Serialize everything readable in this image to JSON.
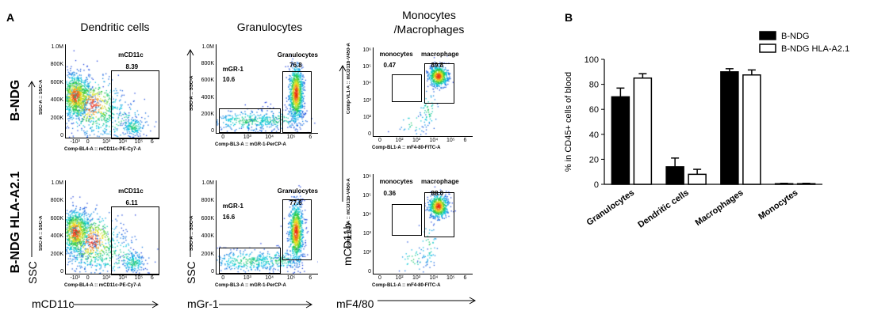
{
  "panel_a": {
    "label": "A",
    "columns": [
      "Dendritic cells",
      "Granulocytes",
      "Monocytes\n/Macrophages"
    ],
    "rows": [
      "B-NDG",
      "B-NDG HLA-A2.1"
    ],
    "y_axis_word": "SSC",
    "y_axis_word_mono": "mCD11b",
    "x_axis_words": [
      "mCD11c",
      "mGr-1",
      "mF4/80"
    ],
    "flow_plots": [
      {
        "x_param": "Comp-BL4-A :: mCD11c-PE-Cy7-A",
        "y_param": "SSC-A :: SSC-A",
        "x_ticks": [
          "-10³",
          "0",
          "10³",
          "10⁴",
          "10⁵",
          "6"
        ],
        "y_ticks": [
          "1.0M",
          "800K",
          "600K",
          "400K",
          "200K",
          "0"
        ],
        "gates": [
          {
            "name": "mCD11c",
            "value": "8.39"
          }
        ]
      },
      {
        "x_param": "Comp-BL3-A :: mGR-1-PerCP-A",
        "y_param": "SSC-A :: SSC-A",
        "x_ticks": [
          "0",
          "10³",
          "10⁴",
          "10⁵",
          "6"
        ],
        "y_ticks": [
          "1.0M",
          "800K",
          "600K",
          "400K",
          "200K",
          "0"
        ],
        "gates": [
          {
            "name": "mGR-1",
            "value": "10.6"
          },
          {
            "name": "Granulocytes",
            "value": "76.8"
          }
        ]
      },
      {
        "x_param": "Comp-BL1-A :: mF4-80-FITC-A",
        "y_param": "Comp-VL1-A :: mCD11b-V450-A",
        "x_ticks": [
          "0",
          "10²",
          "10³",
          "10⁴",
          "10⁵",
          "6"
        ],
        "y_ticks": [
          "10⁶",
          "10⁵",
          "10⁴",
          "10³",
          "10²",
          "0"
        ],
        "gates": [
          {
            "name": "monocytes",
            "value": "0.47"
          },
          {
            "name": "macrophage",
            "value": "89.8"
          }
        ]
      },
      {
        "x_param": "Comp-BL4-A :: mCD11c-PE-Cy7-A",
        "y_param": "SSC-A :: SSC-A",
        "x_ticks": [
          "-10³",
          "0",
          "10³",
          "10⁴",
          "10⁵",
          "6"
        ],
        "y_ticks": [
          "1.0M",
          "800K",
          "600K",
          "400K",
          "200K",
          "0"
        ],
        "gates": [
          {
            "name": "mCD11c",
            "value": "6.11"
          }
        ]
      },
      {
        "x_param": "Comp-BL3-A :: mGR-1-PerCP-A",
        "y_param": "SSC-A :: SSC-A",
        "x_ticks": [
          "0",
          "10³",
          "10⁴",
          "10⁵",
          "6"
        ],
        "y_ticks": [
          "1.0M",
          "800K",
          "600K",
          "400K",
          "200K",
          "0"
        ],
        "gates": [
          {
            "name": "mGR-1",
            "value": "16.6"
          },
          {
            "name": "Granulocytes",
            "value": "77.6"
          }
        ]
      },
      {
        "x_param": "Comp-BL1-A :: mF4-80-FITC-A",
        "y_param": "Comp-VL1-A :: mCD11b-V450-A",
        "x_ticks": [
          "0",
          "10²",
          "10³",
          "10⁴",
          "10⁵",
          "6"
        ],
        "y_ticks": [
          "10⁶",
          "10⁵",
          "10⁴",
          "10³",
          "10²",
          "0"
        ],
        "gates": [
          {
            "name": "monocytes",
            "value": "0.36"
          },
          {
            "name": "macrophage",
            "value": "88.0"
          }
        ]
      }
    ]
  },
  "panel_b": {
    "label": "B"
  },
  "chart_data": {
    "type": "bar",
    "categories": [
      "Granulocytes",
      "Dendritic cells",
      "Macrophages",
      "Monocytes"
    ],
    "series": [
      {
        "name": "B-NDG",
        "color": "#000000",
        "values": [
          70,
          14,
          90,
          0.5
        ],
        "errors": [
          7,
          7,
          2.5,
          0.3
        ]
      },
      {
        "name": "B-NDG HLA-A2.1",
        "color": "#ffffff",
        "values": [
          85,
          8,
          87.5,
          0.5
        ],
        "errors": [
          3.5,
          4,
          4,
          0.3
        ]
      }
    ],
    "ylabel": "% in CD45+ cells of blood",
    "xlabel": "",
    "ylim": [
      0,
      100
    ],
    "yticks": [
      0,
      20,
      40,
      60,
      80,
      100
    ],
    "legend_position": "top-right",
    "grid": false
  }
}
